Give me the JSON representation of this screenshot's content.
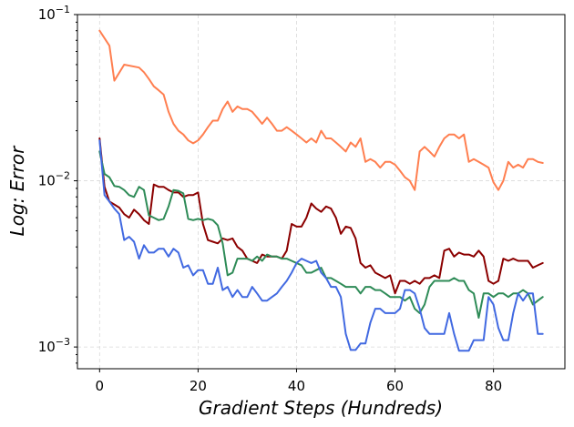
{
  "chart_data": {
    "type": "line",
    "xlabel": "Gradient Steps (Hundreds)",
    "ylabel": "Log: Error",
    "yscale": "log",
    "xlim": [
      -4.5,
      94.5
    ],
    "ylim": [
      0.00074,
      0.1
    ],
    "xticks": [
      0,
      20,
      40,
      60,
      80
    ],
    "xtick_labels": [
      "0",
      "20",
      "40",
      "60",
      "80"
    ],
    "yticks": [
      0.001,
      0.01,
      0.1
    ],
    "ytick_labels": [
      {
        "base": "10",
        "exp": "−3"
      },
      {
        "base": "10",
        "exp": "−2"
      },
      {
        "base": "10",
        "exp": "−1"
      }
    ],
    "grid": true,
    "legend": "none",
    "series": [
      {
        "color": "#ff7f50",
        "x": [
          0,
          2,
          3,
          5,
          8,
          9,
          10,
          11,
          12,
          13,
          14,
          15,
          16,
          17,
          18,
          19,
          20,
          21,
          22,
          23,
          24,
          25,
          26,
          27,
          28,
          29,
          30,
          31,
          32,
          33,
          34,
          35,
          36,
          37,
          38,
          39,
          40,
          41,
          42,
          43,
          44,
          45,
          46,
          47,
          48,
          49,
          50,
          51,
          52,
          53,
          54,
          55,
          56,
          57,
          58,
          59,
          60,
          61,
          62,
          63,
          64,
          65,
          66,
          67,
          68,
          69,
          70,
          71,
          72,
          73,
          74,
          75,
          76,
          77,
          78,
          79,
          80,
          81,
          82,
          83,
          84,
          85,
          86,
          87,
          88,
          89,
          90
        ],
        "y": [
          0.08,
          0.065,
          0.04,
          0.05,
          0.048,
          0.045,
          0.041,
          0.037,
          0.035,
          0.033,
          0.026,
          0.022,
          0.02,
          0.019,
          0.0175,
          0.0168,
          0.0175,
          0.019,
          0.021,
          0.023,
          0.023,
          0.027,
          0.03,
          0.026,
          0.028,
          0.027,
          0.027,
          0.026,
          0.024,
          0.022,
          0.024,
          0.022,
          0.02,
          0.02,
          0.021,
          0.02,
          0.019,
          0.018,
          0.017,
          0.018,
          0.017,
          0.02,
          0.018,
          0.018,
          0.017,
          0.016,
          0.015,
          0.017,
          0.016,
          0.018,
          0.013,
          0.0135,
          0.013,
          0.012,
          0.013,
          0.013,
          0.0125,
          0.0115,
          0.0105,
          0.01,
          0.0088,
          0.015,
          0.016,
          0.015,
          0.014,
          0.016,
          0.018,
          0.019,
          0.019,
          0.018,
          0.019,
          0.013,
          0.0135,
          0.013,
          0.0125,
          0.012,
          0.0098,
          0.0088,
          0.01,
          0.013,
          0.012,
          0.0125,
          0.012,
          0.0135,
          0.0135,
          0.013,
          0.0128
        ]
      },
      {
        "color": "#8b0000",
        "x": [
          0,
          1,
          2,
          3,
          4,
          5,
          6,
          7,
          8,
          9,
          10,
          11,
          12,
          13,
          14,
          15,
          16,
          17,
          18,
          19,
          20,
          21,
          22,
          23,
          24,
          25,
          26,
          27,
          28,
          29,
          30,
          31,
          32,
          33,
          34,
          35,
          36,
          37,
          38,
          39,
          40,
          41,
          42,
          43,
          44,
          45,
          46,
          47,
          48,
          49,
          50,
          51,
          52,
          53,
          54,
          55,
          56,
          57,
          58,
          59,
          60,
          61,
          62,
          63,
          64,
          65,
          66,
          67,
          68,
          69,
          70,
          71,
          72,
          73,
          74,
          75,
          76,
          77,
          78,
          79,
          80,
          81,
          82,
          83,
          84,
          85,
          86,
          87,
          88,
          89,
          90
        ],
        "y": [
          0.018,
          0.0092,
          0.0075,
          0.0072,
          0.0069,
          0.0063,
          0.006,
          0.0067,
          0.0063,
          0.0058,
          0.0055,
          0.0095,
          0.0092,
          0.0092,
          0.0088,
          0.0085,
          0.0085,
          0.008,
          0.0082,
          0.0082,
          0.0085,
          0.0055,
          0.0044,
          0.0043,
          0.0042,
          0.0045,
          0.0044,
          0.0045,
          0.004,
          0.0038,
          0.0034,
          0.0033,
          0.0032,
          0.0036,
          0.0035,
          0.0035,
          0.0035,
          0.0034,
          0.0038,
          0.0055,
          0.0053,
          0.0053,
          0.006,
          0.0073,
          0.0068,
          0.0065,
          0.007,
          0.0068,
          0.006,
          0.0048,
          0.0053,
          0.0052,
          0.0045,
          0.0032,
          0.003,
          0.0031,
          0.0028,
          0.0027,
          0.0026,
          0.0027,
          0.0021,
          0.0025,
          0.0025,
          0.0024,
          0.0025,
          0.0024,
          0.0026,
          0.0026,
          0.0027,
          0.0026,
          0.0038,
          0.0039,
          0.0035,
          0.0037,
          0.0036,
          0.0036,
          0.0035,
          0.0038,
          0.0035,
          0.0025,
          0.0024,
          0.0025,
          0.0034,
          0.0033,
          0.0034,
          0.0033,
          0.0033,
          0.0033,
          0.003,
          0.0031,
          0.0032
        ]
      },
      {
        "color": "#2e8b57",
        "x": [
          0,
          1,
          2,
          3,
          4,
          5,
          6,
          7,
          8,
          9,
          10,
          11,
          12,
          13,
          14,
          15,
          16,
          17,
          18,
          19,
          20,
          21,
          22,
          23,
          24,
          25,
          26,
          27,
          28,
          29,
          30,
          31,
          32,
          33,
          34,
          35,
          36,
          37,
          38,
          39,
          40,
          41,
          42,
          43,
          44,
          45,
          46,
          47,
          48,
          49,
          50,
          51,
          52,
          53,
          54,
          55,
          56,
          57,
          58,
          59,
          60,
          61,
          62,
          63,
          64,
          65,
          66,
          67,
          68,
          69,
          70,
          71,
          72,
          73,
          74,
          75,
          76,
          77,
          78,
          79,
          80,
          81,
          82,
          83,
          84,
          85,
          86,
          87,
          88,
          89,
          90
        ],
        "y": [
          0.015,
          0.011,
          0.0105,
          0.0093,
          0.0092,
          0.0088,
          0.0082,
          0.008,
          0.0092,
          0.0088,
          0.0062,
          0.006,
          0.0058,
          0.0059,
          0.007,
          0.0088,
          0.0087,
          0.0084,
          0.0059,
          0.0058,
          0.0059,
          0.0058,
          0.0059,
          0.0058,
          0.0054,
          0.0042,
          0.0027,
          0.0028,
          0.0034,
          0.0034,
          0.0034,
          0.0033,
          0.0035,
          0.0033,
          0.0036,
          0.0035,
          0.0035,
          0.0034,
          0.0034,
          0.0033,
          0.0032,
          0.0031,
          0.0028,
          0.0028,
          0.0029,
          0.003,
          0.0026,
          0.0026,
          0.0025,
          0.0024,
          0.0023,
          0.0023,
          0.0023,
          0.0021,
          0.0023,
          0.0023,
          0.0022,
          0.0022,
          0.0021,
          0.002,
          0.002,
          0.002,
          0.0019,
          0.002,
          0.0017,
          0.0016,
          0.0018,
          0.0023,
          0.0025,
          0.0025,
          0.0025,
          0.0025,
          0.0026,
          0.0025,
          0.0025,
          0.0022,
          0.0021,
          0.0015,
          0.0021,
          0.0021,
          0.002,
          0.0021,
          0.0021,
          0.002,
          0.0021,
          0.0021,
          0.0022,
          0.0021,
          0.0018,
          0.0019,
          0.002
        ]
      },
      {
        "color": "#4169e1",
        "x": [
          0,
          1,
          2,
          3,
          4,
          5,
          6,
          7,
          8,
          9,
          10,
          11,
          12,
          13,
          14,
          15,
          16,
          17,
          18,
          19,
          20,
          21,
          22,
          23,
          24,
          25,
          26,
          27,
          28,
          29,
          30,
          31,
          32,
          33,
          34,
          35,
          36,
          37,
          38,
          39,
          40,
          41,
          42,
          43,
          44,
          45,
          46,
          47,
          48,
          49,
          50,
          51,
          52,
          53,
          54,
          55,
          56,
          57,
          58,
          59,
          60,
          61,
          62,
          63,
          64,
          65,
          66,
          67,
          68,
          69,
          70,
          71,
          72,
          73,
          74,
          75,
          76,
          77,
          78,
          79,
          80,
          81,
          82,
          83,
          84,
          85,
          86,
          87,
          88,
          89,
          90
        ],
        "y": [
          0.0175,
          0.0082,
          0.0075,
          0.0068,
          0.0063,
          0.0044,
          0.0046,
          0.0043,
          0.0034,
          0.0041,
          0.0037,
          0.0037,
          0.0039,
          0.0039,
          0.0035,
          0.0039,
          0.0037,
          0.003,
          0.0031,
          0.0027,
          0.0029,
          0.0029,
          0.0024,
          0.0024,
          0.003,
          0.0022,
          0.0023,
          0.002,
          0.0022,
          0.002,
          0.002,
          0.0023,
          0.0021,
          0.0019,
          0.0019,
          0.002,
          0.0021,
          0.0023,
          0.0025,
          0.0028,
          0.0032,
          0.0034,
          0.0033,
          0.0032,
          0.0033,
          0.0028,
          0.0026,
          0.0023,
          0.0023,
          0.002,
          0.0012,
          0.00096,
          0.00096,
          0.00105,
          0.00105,
          0.0014,
          0.0017,
          0.0017,
          0.0016,
          0.0016,
          0.0016,
          0.0017,
          0.0022,
          0.0022,
          0.0021,
          0.0017,
          0.0013,
          0.0012,
          0.0012,
          0.0012,
          0.0012,
          0.0016,
          0.0012,
          0.00095,
          0.00095,
          0.00095,
          0.0011,
          0.0011,
          0.0011,
          0.002,
          0.0018,
          0.0013,
          0.0011,
          0.0011,
          0.0016,
          0.0021,
          0.0019,
          0.0021,
          0.0021,
          0.0012,
          0.0012
        ]
      }
    ]
  }
}
